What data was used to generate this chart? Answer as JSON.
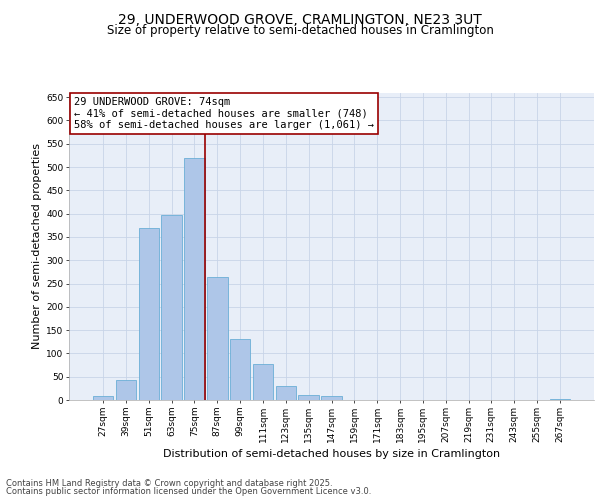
{
  "title_line1": "29, UNDERWOOD GROVE, CRAMLINGTON, NE23 3UT",
  "title_line2": "Size of property relative to semi-detached houses in Cramlington",
  "xlabel": "Distribution of semi-detached houses by size in Cramlington",
  "ylabel": "Number of semi-detached properties",
  "categories": [
    "27sqm",
    "39sqm",
    "51sqm",
    "63sqm",
    "75sqm",
    "87sqm",
    "99sqm",
    "111sqm",
    "123sqm",
    "135sqm",
    "147sqm",
    "159sqm",
    "171sqm",
    "183sqm",
    "195sqm",
    "207sqm",
    "219sqm",
    "231sqm",
    "243sqm",
    "255sqm",
    "267sqm"
  ],
  "values": [
    8,
    42,
    370,
    397,
    520,
    263,
    130,
    78,
    30,
    10,
    9,
    0,
    0,
    0,
    0,
    0,
    0,
    0,
    0,
    0,
    2
  ],
  "bar_color": "#aec6e8",
  "bar_edge_color": "#6baed6",
  "vline_color": "#990000",
  "annotation_title": "29 UNDERWOOD GROVE: 74sqm",
  "annotation_line2": "← 41% of semi-detached houses are smaller (748)",
  "annotation_line3": "58% of semi-detached houses are larger (1,061) →",
  "annotation_box_color": "#ffffff",
  "annotation_box_edge": "#990000",
  "ylim": [
    0,
    660
  ],
  "yticks": [
    0,
    50,
    100,
    150,
    200,
    250,
    300,
    350,
    400,
    450,
    500,
    550,
    600,
    650
  ],
  "grid_color": "#c8d4e8",
  "bg_color": "#e8eef8",
  "footer_line1": "Contains HM Land Registry data © Crown copyright and database right 2025.",
  "footer_line2": "Contains public sector information licensed under the Open Government Licence v3.0.",
  "title_fontsize": 10,
  "subtitle_fontsize": 8.5,
  "axis_label_fontsize": 8,
  "tick_fontsize": 6.5,
  "annotation_fontsize": 7.5,
  "footer_fontsize": 6
}
